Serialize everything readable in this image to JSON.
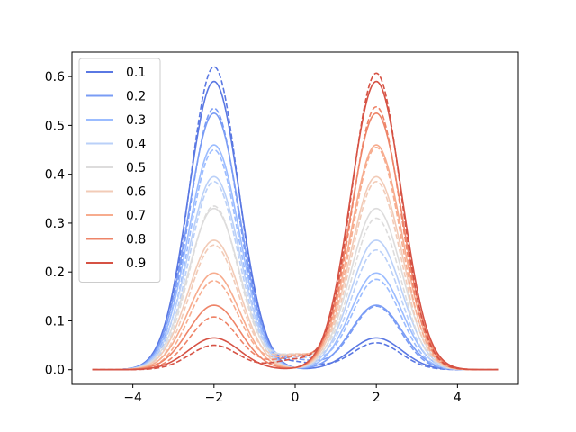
{
  "chart_data": {
    "type": "line",
    "title": "",
    "xlabel": "",
    "ylabel": "",
    "xlim": [
      -5.5,
      5.5
    ],
    "ylim": [
      -0.03,
      0.65
    ],
    "xticks": [
      -4,
      -2,
      0,
      2,
      4
    ],
    "xtick_labels": [
      "−4",
      "−2",
      "0",
      "2",
      "4"
    ],
    "yticks": [
      0.0,
      0.1,
      0.2,
      0.3,
      0.4,
      0.5,
      0.6
    ],
    "ytick_labels": [
      "0.0",
      "0.1",
      "0.2",
      "0.3",
      "0.4",
      "0.5",
      "0.6"
    ],
    "grid": false,
    "legend_position": "top-left",
    "x_range": [
      -5,
      5
    ],
    "peak_centers": [
      -2,
      2
    ],
    "series": [
      {
        "name": "0.1",
        "color": "#5a78e3",
        "solid": {
          "left_peak": 0.59,
          "right_peak": 0.065,
          "width": 0.63
        },
        "dashed": {
          "left_peak": 0.62,
          "right_peak": 0.055,
          "width": 0.6,
          "center_floor": 0.015
        }
      },
      {
        "name": "0.2",
        "color": "#7a9cf5",
        "solid": {
          "left_peak": 0.525,
          "right_peak": 0.132,
          "width": 0.63
        },
        "dashed": {
          "left_peak": 0.535,
          "right_peak": 0.13,
          "width": 0.6,
          "center_floor": 0.02
        }
      },
      {
        "name": "0.3",
        "color": "#9bbcff",
        "solid": {
          "left_peak": 0.46,
          "right_peak": 0.198,
          "width": 0.63
        },
        "dashed": {
          "left_peak": 0.45,
          "right_peak": 0.185,
          "width": 0.6,
          "center_floor": 0.025
        }
      },
      {
        "name": "0.4",
        "color": "#bad0f8",
        "solid": {
          "left_peak": 0.395,
          "right_peak": 0.265,
          "width": 0.63
        },
        "dashed": {
          "left_peak": 0.385,
          "right_peak": 0.245,
          "width": 0.6,
          "center_floor": 0.028
        }
      },
      {
        "name": "0.5",
        "color": "#dddcdc",
        "solid": {
          "left_peak": 0.33,
          "right_peak": 0.33,
          "width": 0.63
        },
        "dashed": {
          "left_peak": 0.335,
          "right_peak": 0.31,
          "width": 0.6,
          "center_floor": 0.03
        }
      },
      {
        "name": "0.6",
        "color": "#f2cbb7",
        "solid": {
          "left_peak": 0.265,
          "right_peak": 0.395,
          "width": 0.63
        },
        "dashed": {
          "left_peak": 0.255,
          "right_peak": 0.385,
          "width": 0.6,
          "center_floor": 0.03
        }
      },
      {
        "name": "0.7",
        "color": "#f7ac8e",
        "solid": {
          "left_peak": 0.198,
          "right_peak": 0.46,
          "width": 0.63
        },
        "dashed": {
          "left_peak": 0.182,
          "right_peak": 0.455,
          "width": 0.6,
          "center_floor": 0.028
        }
      },
      {
        "name": "0.8",
        "color": "#ee8468",
        "solid": {
          "left_peak": 0.132,
          "right_peak": 0.525,
          "width": 0.63
        },
        "dashed": {
          "left_peak": 0.108,
          "right_peak": 0.538,
          "width": 0.6,
          "center_floor": 0.025
        }
      },
      {
        "name": "0.9",
        "color": "#d65244",
        "solid": {
          "left_peak": 0.065,
          "right_peak": 0.59,
          "width": 0.63
        },
        "dashed": {
          "left_peak": 0.05,
          "right_peak": 0.607,
          "width": 0.6,
          "center_floor": 0.02
        }
      }
    ]
  }
}
